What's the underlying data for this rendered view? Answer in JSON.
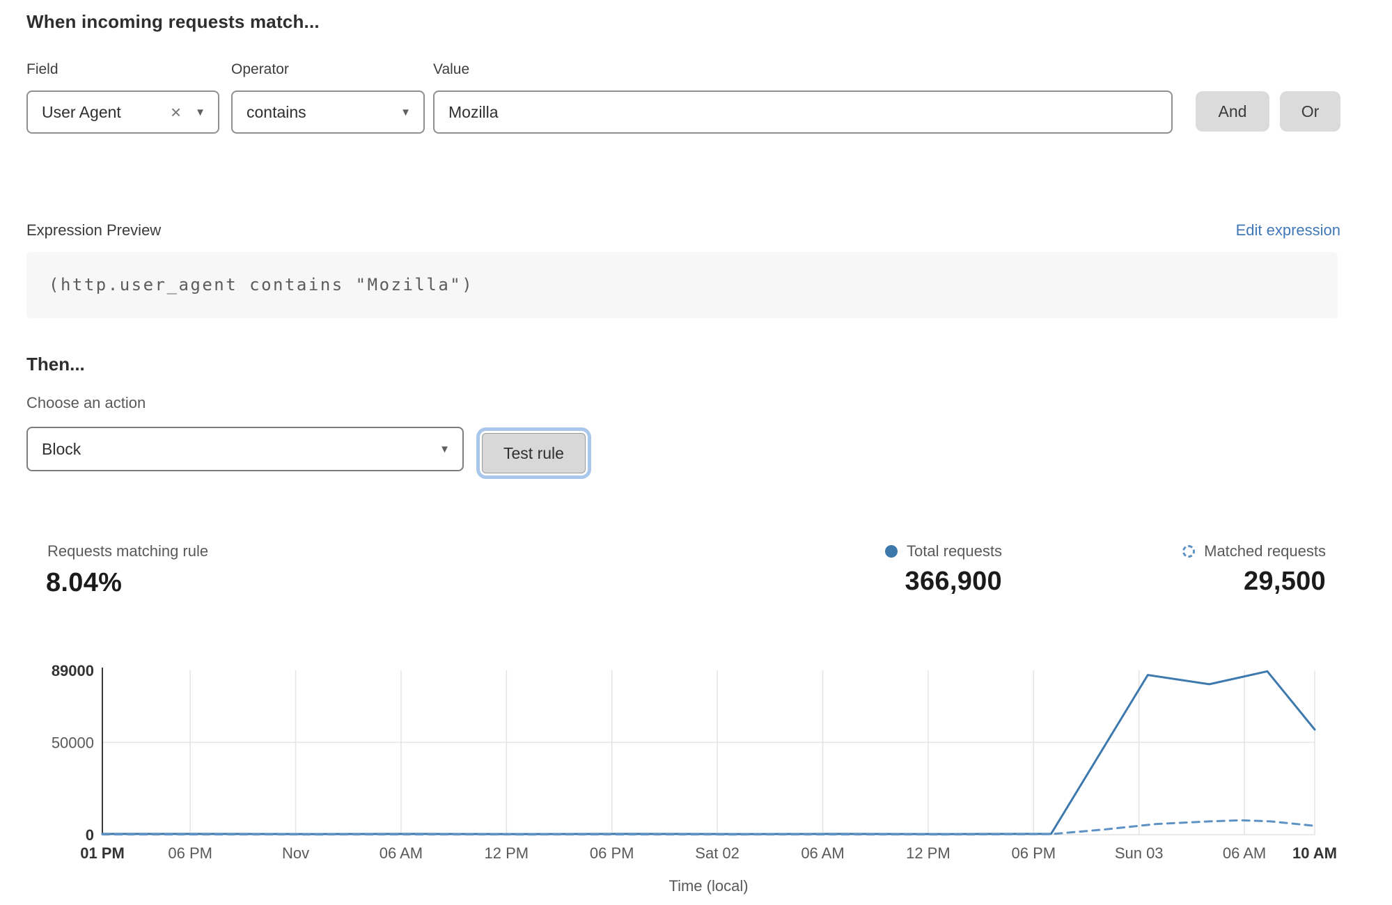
{
  "rule_builder": {
    "heading": "When incoming requests match...",
    "field": {
      "label": "Field",
      "value": "User Agent"
    },
    "operator": {
      "label": "Operator",
      "value": "contains"
    },
    "value_field": {
      "label": "Value",
      "value": "Mozilla"
    },
    "and_button": "And",
    "or_button": "Or"
  },
  "expression_preview": {
    "label": "Expression Preview",
    "edit_link": "Edit expression",
    "expression": "(http.user_agent contains \"Mozilla\")"
  },
  "action_section": {
    "heading": "Then...",
    "choose_label": "Choose an action",
    "selected_action": "Block",
    "test_button": "Test rule"
  },
  "stats": {
    "matching_label": "Requests matching rule",
    "matching_value": "8.04%",
    "total": {
      "label": "Total requests",
      "value": "366,900"
    },
    "matched": {
      "label": "Matched requests",
      "value": "29,500"
    }
  },
  "chart_data": {
    "type": "line",
    "title": "",
    "xlabel": "Time (local)",
    "ylabel": "",
    "ylim": [
      0,
      89000
    ],
    "x_unit": "hours from Fri 01 PM",
    "x_range": [
      0,
      69
    ],
    "grid": true,
    "legend": [
      "Total requests",
      "Matched requests"
    ],
    "legend_position": "top-right",
    "yticks": [
      {
        "label": "89000",
        "v": 89000,
        "bold": true
      },
      {
        "label": "50000",
        "v": 50000,
        "bold": false
      },
      {
        "label": "0",
        "v": 0,
        "bold": true
      }
    ],
    "xticks": [
      {
        "label": "01 PM",
        "t": 0,
        "bold": true
      },
      {
        "label": "06 PM",
        "t": 5
      },
      {
        "label": "Nov",
        "t": 11
      },
      {
        "label": "06 AM",
        "t": 17
      },
      {
        "label": "12 PM",
        "t": 23
      },
      {
        "label": "06 PM",
        "t": 29
      },
      {
        "label": "Sat 02",
        "t": 35
      },
      {
        "label": "06 AM",
        "t": 41
      },
      {
        "label": "12 PM",
        "t": 47
      },
      {
        "label": "06 PM",
        "t": 53
      },
      {
        "label": "Sun 03",
        "t": 59
      },
      {
        "label": "06 AM",
        "t": 65
      },
      {
        "label": "10 AM",
        "t": 69,
        "bold": true
      }
    ],
    "series": [
      {
        "name": "Total requests",
        "style": "solid",
        "color": "#3e79ae",
        "points": [
          [
            0,
            400
          ],
          [
            6,
            400
          ],
          [
            12,
            350
          ],
          [
            18,
            400
          ],
          [
            24,
            350
          ],
          [
            30,
            400
          ],
          [
            36,
            350
          ],
          [
            42,
            400
          ],
          [
            48,
            350
          ],
          [
            54,
            500
          ],
          [
            59.5,
            86500
          ],
          [
            63,
            81500
          ],
          [
            66.3,
            88500
          ],
          [
            69,
            57000
          ]
        ]
      },
      {
        "name": "Matched requests",
        "style": "dashed",
        "color": "#5e92c4",
        "points": [
          [
            0,
            150
          ],
          [
            6,
            150
          ],
          [
            12,
            130
          ],
          [
            18,
            150
          ],
          [
            24,
            130
          ],
          [
            30,
            150
          ],
          [
            36,
            130
          ],
          [
            42,
            150
          ],
          [
            48,
            130
          ],
          [
            54,
            300
          ],
          [
            57,
            2800
          ],
          [
            60,
            5800
          ],
          [
            63,
            7200
          ],
          [
            64.8,
            7800
          ],
          [
            66.5,
            7200
          ],
          [
            69,
            4800
          ]
        ]
      }
    ]
  },
  "colors": {
    "accent_blue": "#3e79ae",
    "dashed_blue": "#5e92c4",
    "link_blue": "#4078b6",
    "button_gray": "#dbdbdb",
    "focus_ring": "#a9c6eb"
  }
}
